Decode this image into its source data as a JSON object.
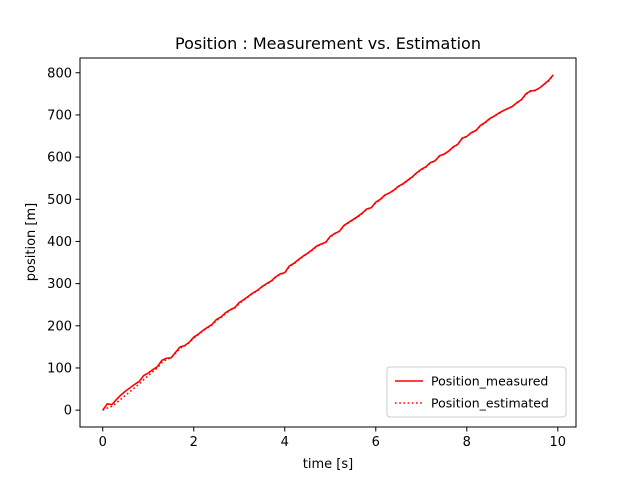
{
  "chart_data": {
    "type": "line",
    "title": "Position : Measurement vs. Estimation",
    "xlabel": "time [s]",
    "ylabel": "position [m]",
    "xlim": [
      -0.5,
      10.4
    ],
    "ylim": [
      -40,
      835
    ],
    "xticks": [
      0,
      2,
      4,
      6,
      8,
      10
    ],
    "yticks": [
      0,
      100,
      200,
      300,
      400,
      500,
      600,
      700,
      800
    ],
    "grid": false,
    "legend_position": "bottom-right",
    "series": [
      {
        "name": "Position_measured",
        "color": "#ff0000",
        "style": "solid",
        "x": [
          0.0,
          0.1,
          0.2,
          0.3,
          0.4,
          0.5,
          0.6,
          0.7,
          0.8,
          0.9,
          1.0,
          1.1,
          1.2,
          1.3,
          1.4,
          1.5,
          1.6,
          1.7,
          1.8,
          1.9,
          2.0,
          2.1,
          2.2,
          2.3,
          2.4,
          2.5,
          2.6,
          2.7,
          2.8,
          2.9,
          3.0,
          3.1,
          3.2,
          3.3,
          3.4,
          3.5,
          3.6,
          3.7,
          3.8,
          3.9,
          4.0,
          4.1,
          4.2,
          4.3,
          4.4,
          4.5,
          4.6,
          4.7,
          4.8,
          4.9,
          5.0,
          5.1,
          5.2,
          5.3,
          5.4,
          5.5,
          5.6,
          5.7,
          5.8,
          5.9,
          6.0,
          6.1,
          6.2,
          6.3,
          6.4,
          6.5,
          6.6,
          6.7,
          6.8,
          6.9,
          7.0,
          7.1,
          7.2,
          7.3,
          7.4,
          7.5,
          7.6,
          7.7,
          7.8,
          7.9,
          8.0,
          8.1,
          8.2,
          8.3,
          8.4,
          8.5,
          8.6,
          8.7,
          8.8,
          8.9,
          9.0,
          9.1,
          9.2,
          9.3,
          9.4,
          9.5,
          9.6,
          9.7,
          9.8,
          9.9
        ],
        "y": [
          0,
          15,
          13,
          25,
          36,
          45,
          53,
          61,
          68,
          82,
          88,
          96,
          103,
          118,
          123,
          124,
          137,
          150,
          153,
          161,
          173,
          180,
          189,
          196,
          203,
          215,
          221,
          231,
          238,
          243,
          255,
          262,
          270,
          278,
          284,
          293,
          300,
          306,
          316,
          323,
          326,
          342,
          348,
          357,
          365,
          372,
          380,
          389,
          394,
          398,
          412,
          419,
          424,
          438,
          445,
          452,
          459,
          467,
          477,
          480,
          493,
          500,
          510,
          515,
          522,
          531,
          537,
          545,
          553,
          563,
          571,
          577,
          587,
          591,
          603,
          607,
          614,
          624,
          630,
          645,
          649,
          658,
          663,
          675,
          682,
          691,
          697,
          704,
          710,
          715,
          720,
          729,
          736,
          750,
          757,
          758,
          764,
          773,
          782,
          795
        ]
      },
      {
        "name": "Position_estimated",
        "color": "#ff0000",
        "style": "dotted",
        "x": [
          0.0,
          0.1,
          0.2,
          0.3,
          0.4,
          0.5,
          0.6,
          0.7,
          0.8,
          0.9,
          1.0,
          1.1,
          1.2,
          1.3,
          1.4,
          1.5,
          1.6,
          1.7,
          1.8,
          1.9,
          2.0,
          2.1,
          2.2,
          2.3,
          2.4,
          2.5,
          2.6,
          2.7,
          2.8,
          2.9,
          3.0,
          3.1,
          3.2,
          3.3,
          3.4,
          3.5,
          3.6,
          3.7,
          3.8,
          3.9,
          4.0,
          4.1,
          4.2,
          4.3,
          4.4,
          4.5,
          4.6,
          4.7,
          4.8,
          4.9,
          5.0,
          5.1,
          5.2,
          5.3,
          5.4,
          5.5,
          5.6,
          5.7,
          5.8,
          5.9,
          6.0,
          6.1,
          6.2,
          6.3,
          6.4,
          6.5,
          6.6,
          6.7,
          6.8,
          6.9,
          7.0,
          7.1,
          7.2,
          7.3,
          7.4,
          7.5,
          7.6,
          7.7,
          7.8,
          7.9,
          8.0,
          8.1,
          8.2,
          8.3,
          8.4,
          8.5,
          8.6,
          8.7,
          8.8,
          8.9,
          9.0,
          9.1,
          9.2,
          9.3,
          9.4,
          9.5,
          9.6,
          9.7,
          9.8,
          9.9
        ],
        "y": [
          0,
          5,
          9,
          17,
          26,
          35,
          44,
          53,
          62,
          72,
          82,
          91,
          100,
          113,
          120,
          124,
          135,
          147,
          152,
          160,
          171,
          179,
          188,
          195,
          202,
          213,
          220,
          229,
          237,
          242,
          253,
          261,
          269,
          277,
          283,
          292,
          299,
          305,
          315,
          322,
          326,
          340,
          347,
          356,
          364,
          371,
          379,
          388,
          393,
          398,
          411,
          418,
          424,
          437,
          444,
          451,
          458,
          466,
          476,
          480,
          492,
          499,
          509,
          515,
          521,
          530,
          536,
          544,
          552,
          562,
          570,
          576,
          586,
          591,
          602,
          607,
          614,
          623,
          630,
          644,
          649,
          657,
          663,
          674,
          681,
          690,
          697,
          703,
          710,
          715,
          720,
          728,
          736,
          749,
          756,
          758,
          764,
          772,
          781,
          794
        ]
      }
    ]
  }
}
